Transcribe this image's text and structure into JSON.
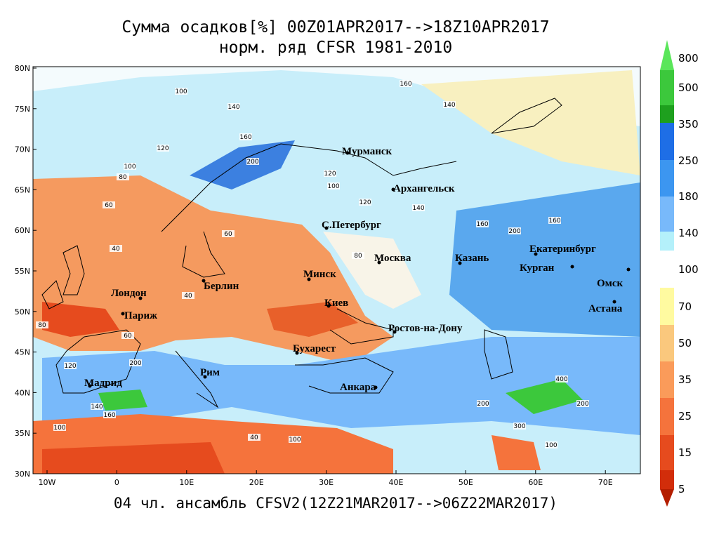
{
  "title": "Сумма осадков[%] 00Z01APR2017-->18Z10APR2017",
  "subtitle": "норм. ряд CFSR 1981-2010",
  "footer": "04 чл. ансамбль CFSV2(12Z21MAR2017-->06Z22MAR2017)",
  "x_ticks": [
    "10W",
    "0",
    "10E",
    "20E",
    "30E",
    "40E",
    "50E",
    "60E",
    "70E"
  ],
  "y_ticks": [
    "30N",
    "35N",
    "40N",
    "45N",
    "50N",
    "55N",
    "60N",
    "65N",
    "70N",
    "75N",
    "80N"
  ],
  "cities": [
    "Мурманск",
    "Архангельск",
    "С.Петербург",
    "Москва",
    "Казань",
    "Екатеринбург",
    "Курган",
    "Омск",
    "Астана",
    "Минск",
    "Киев",
    "Берлин",
    "Лондон",
    "Париж",
    "Ростов-на-Дону",
    "Бухарест",
    "Рим",
    "Мадрид",
    "Анкара"
  ],
  "contour_labels": [
    "100",
    "140",
    "120",
    "100",
    "80",
    "60",
    "160",
    "160",
    "140",
    "200",
    "120",
    "100",
    "120",
    "140",
    "160",
    "200",
    "160",
    "80",
    "60",
    "40",
    "40",
    "60",
    "80",
    "120",
    "140",
    "200",
    "100",
    "160",
    "200",
    "300",
    "400",
    "200",
    "100",
    "40",
    "100"
  ],
  "colorbar": {
    "labels": [
      "800",
      "500",
      "350",
      "250",
      "180",
      "140",
      "100",
      "70",
      "50",
      "35",
      "25",
      "15",
      "5"
    ],
    "upper_colors": [
      "#5ae65a",
      "#3cc83c",
      "#1ea01e",
      "#1e6ee6",
      "#3c96f0",
      "#78b9fa",
      "#b4f0fa"
    ],
    "lower_colors": [
      "#fffaa0",
      "#fac87d",
      "#fa9b5a",
      "#f5733c",
      "#e64b1e",
      "#d22d0a",
      "#b41e00"
    ]
  }
}
